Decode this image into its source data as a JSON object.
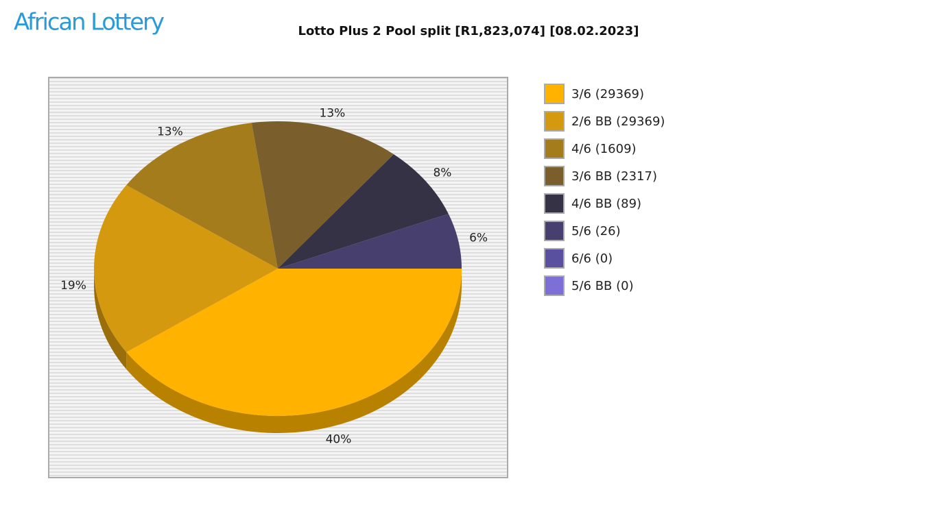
{
  "logo": "African Lottery",
  "chart_data": {
    "type": "pie",
    "title": "Lotto Plus 2 Pool split [R1,823,074] [08.02.2023]",
    "categories": [
      "3/6 (29369)",
      "2/6 BB (29369)",
      "4/6 (1609)",
      "3/6 BB (2317)",
      "4/6 BB (89)",
      "5/6 (26)",
      "6/6 (0)",
      "5/6 BB (0)"
    ],
    "values": [
      40,
      19,
      13,
      13,
      8,
      6,
      0,
      0
    ],
    "value_labels": [
      "40%",
      "19%",
      "13%",
      "13%",
      "8%",
      "6%",
      null,
      null
    ],
    "colors": [
      "#ffb300",
      "#d4990f",
      "#a57c1b",
      "#7a5f2c",
      "#363246",
      "#47406e",
      "#5a50a0",
      "#7c6fd6"
    ],
    "legend": "right"
  }
}
